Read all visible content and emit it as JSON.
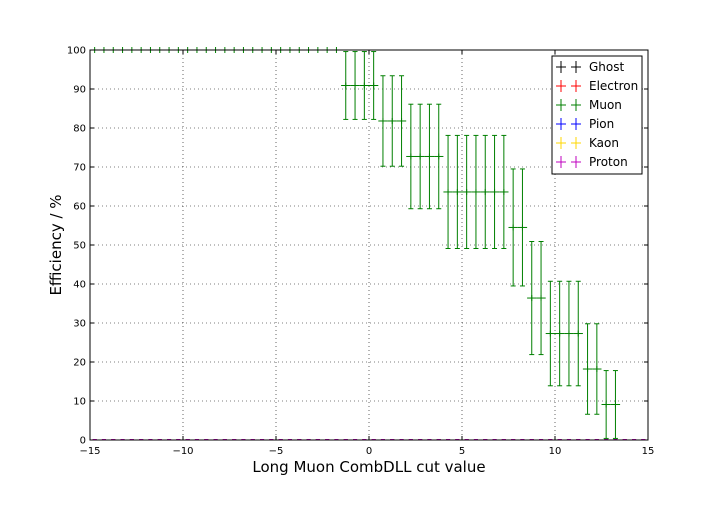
{
  "chart_data": {
    "type": "scatter",
    "title": "",
    "xlabel": "Long Muon CombDLL cut value",
    "ylabel": "Efficiency / %",
    "xlim": [
      -15,
      15
    ],
    "ylim": [
      0,
      100
    ],
    "xticks": [
      -15,
      -10,
      -5,
      0,
      5,
      10,
      15
    ],
    "yticks": [
      0,
      10,
      20,
      30,
      40,
      50,
      60,
      70,
      80,
      90,
      100
    ],
    "xtick_labels": [
      "−15",
      "−10",
      "−5",
      "0",
      "5",
      "10",
      "15"
    ],
    "ytick_labels": [
      "0",
      "10",
      "20",
      "30",
      "40",
      "50",
      "60",
      "70",
      "80",
      "90",
      "100"
    ],
    "grid": true,
    "grid_style": "dotted",
    "legend": "top-right",
    "x_bin_halfwidth": 0.25,
    "series": [
      {
        "name": "Ghost",
        "color": "#000000",
        "points": []
      },
      {
        "name": "Electron",
        "color": "#ff0000",
        "points": []
      },
      {
        "name": "Muon",
        "color": "#007f00",
        "points": [
          {
            "x": -14.75,
            "y": 100,
            "err": 0
          },
          {
            "x": -14.25,
            "y": 100,
            "err": 0
          },
          {
            "x": -13.75,
            "y": 100,
            "err": 0
          },
          {
            "x": -13.25,
            "y": 100,
            "err": 0
          },
          {
            "x": -12.75,
            "y": 100,
            "err": 0
          },
          {
            "x": -12.25,
            "y": 100,
            "err": 0
          },
          {
            "x": -11.75,
            "y": 100,
            "err": 0
          },
          {
            "x": -11.25,
            "y": 100,
            "err": 0
          },
          {
            "x": -10.75,
            "y": 100,
            "err": 0
          },
          {
            "x": -10.25,
            "y": 100,
            "err": 0
          },
          {
            "x": -9.75,
            "y": 100,
            "err": 0
          },
          {
            "x": -9.25,
            "y": 100,
            "err": 0
          },
          {
            "x": -8.75,
            "y": 100,
            "err": 0
          },
          {
            "x": -8.25,
            "y": 100,
            "err": 0
          },
          {
            "x": -7.75,
            "y": 100,
            "err": 0
          },
          {
            "x": -7.25,
            "y": 100,
            "err": 0
          },
          {
            "x": -6.75,
            "y": 100,
            "err": 0
          },
          {
            "x": -6.25,
            "y": 100,
            "err": 0
          },
          {
            "x": -5.75,
            "y": 100,
            "err": 0
          },
          {
            "x": -5.25,
            "y": 100,
            "err": 0
          },
          {
            "x": -4.75,
            "y": 100,
            "err": 0
          },
          {
            "x": -4.25,
            "y": 100,
            "err": 0
          },
          {
            "x": -3.75,
            "y": 100,
            "err": 0
          },
          {
            "x": -3.25,
            "y": 100,
            "err": 0
          },
          {
            "x": -2.75,
            "y": 100,
            "err": 0
          },
          {
            "x": -2.25,
            "y": 100,
            "err": 0
          },
          {
            "x": -1.75,
            "y": 100,
            "err": 0
          },
          {
            "x": -1.25,
            "y": 90.9,
            "err": 8.7
          },
          {
            "x": -0.75,
            "y": 90.9,
            "err": 8.7
          },
          {
            "x": -0.25,
            "y": 90.9,
            "err": 8.7
          },
          {
            "x": 0.25,
            "y": 90.9,
            "err": 8.7
          },
          {
            "x": 0.75,
            "y": 81.8,
            "err": 11.6
          },
          {
            "x": 1.25,
            "y": 81.8,
            "err": 11.6
          },
          {
            "x": 1.75,
            "y": 81.8,
            "err": 11.6
          },
          {
            "x": 2.25,
            "y": 72.7,
            "err": 13.4
          },
          {
            "x": 2.75,
            "y": 72.7,
            "err": 13.4
          },
          {
            "x": 3.25,
            "y": 72.7,
            "err": 13.4
          },
          {
            "x": 3.75,
            "y": 72.7,
            "err": 13.4
          },
          {
            "x": 4.25,
            "y": 63.6,
            "err": 14.5
          },
          {
            "x": 4.75,
            "y": 63.6,
            "err": 14.5
          },
          {
            "x": 5.25,
            "y": 63.6,
            "err": 14.5
          },
          {
            "x": 5.75,
            "y": 63.6,
            "err": 14.5
          },
          {
            "x": 6.25,
            "y": 63.6,
            "err": 14.5
          },
          {
            "x": 6.75,
            "y": 63.6,
            "err": 14.5
          },
          {
            "x": 7.25,
            "y": 63.6,
            "err": 14.5
          },
          {
            "x": 7.75,
            "y": 54.5,
            "err": 15.0
          },
          {
            "x": 8.25,
            "y": 54.5,
            "err": 15.0
          },
          {
            "x": 8.75,
            "y": 36.4,
            "err": 14.5
          },
          {
            "x": 9.25,
            "y": 36.4,
            "err": 14.5
          },
          {
            "x": 9.75,
            "y": 27.3,
            "err": 13.4
          },
          {
            "x": 10.25,
            "y": 27.3,
            "err": 13.4
          },
          {
            "x": 10.75,
            "y": 27.3,
            "err": 13.4
          },
          {
            "x": 11.25,
            "y": 27.3,
            "err": 13.4
          },
          {
            "x": 11.75,
            "y": 18.2,
            "err": 11.6
          },
          {
            "x": 12.25,
            "y": 18.2,
            "err": 11.6
          },
          {
            "x": 12.75,
            "y": 9.1,
            "err": 8.7
          },
          {
            "x": 13.25,
            "y": 9.1,
            "err": 8.7
          }
        ]
      },
      {
        "name": "Pion",
        "color": "#0000ff",
        "points": []
      },
      {
        "name": "Kaon",
        "color": "#ffd700",
        "points": []
      },
      {
        "name": "Proton",
        "color": "#bf00bf",
        "points": []
      }
    ],
    "baseline_series": [
      "Electron",
      "Pion",
      "Kaon",
      "Proton"
    ]
  }
}
